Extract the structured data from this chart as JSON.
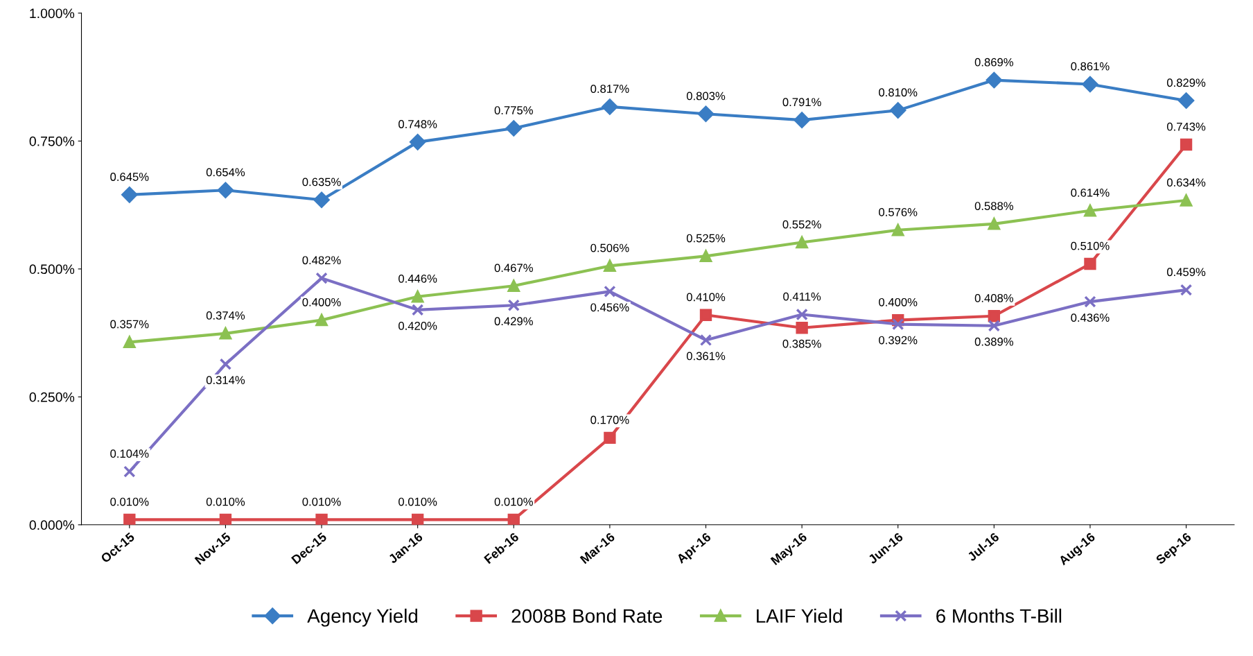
{
  "chart_data": {
    "type": "line",
    "categories": [
      "Oct-15",
      "Nov-15",
      "Dec-15",
      "Jan-16",
      "Feb-16",
      "Mar-16",
      "Apr-16",
      "May-16",
      "Jun-16",
      "Jul-16",
      "Aug-16",
      "Sep-16"
    ],
    "series": [
      {
        "name": "Agency Yield",
        "color": "#3a7dc4",
        "marker": "diamond",
        "values": [
          0.645,
          0.654,
          0.635,
          0.748,
          0.775,
          0.817,
          0.803,
          0.791,
          0.81,
          0.869,
          0.861,
          0.829
        ],
        "value_labels": [
          "0.645%",
          "0.654%",
          "0.635%",
          "0.748%",
          "0.775%",
          "0.817%",
          "0.803%",
          "0.791%",
          "0.810%",
          "0.869%",
          "0.861%",
          "0.829%"
        ]
      },
      {
        "name": "2008B Bond Rate",
        "color": "#d9474b",
        "marker": "square",
        "values": [
          0.01,
          0.01,
          0.01,
          0.01,
          0.01,
          0.17,
          0.41,
          0.385,
          0.4,
          0.408,
          0.51,
          0.743
        ],
        "value_labels": [
          "0.010%",
          "0.010%",
          "0.010%",
          "0.010%",
          "0.010%",
          "0.170%",
          "0.410%",
          "0.385%",
          "0.400%",
          "0.408%",
          "0.510%",
          "0.743%"
        ]
      },
      {
        "name": "LAIF Yield",
        "color": "#8cc152",
        "marker": "triangle",
        "values": [
          0.357,
          0.374,
          0.4,
          0.446,
          0.467,
          0.506,
          0.525,
          0.552,
          0.576,
          0.588,
          0.614,
          0.634
        ],
        "value_labels": [
          "0.357%",
          "0.374%",
          "0.400%",
          "0.446%",
          "0.467%",
          "0.506%",
          "0.525%",
          "0.552%",
          "0.576%",
          "0.588%",
          "0.614%",
          "0.634%"
        ]
      },
      {
        "name": "6 Months T-Bill",
        "color": "#7b6fc4",
        "marker": "cross",
        "values": [
          0.104,
          0.314,
          0.482,
          0.42,
          0.429,
          0.456,
          0.361,
          0.411,
          0.392,
          0.389,
          0.436,
          0.459
        ],
        "value_labels": [
          "0.104%",
          "0.314%",
          "0.482%",
          "0.420%",
          "0.429%",
          "0.456%",
          "0.361%",
          "0.411%",
          "0.392%",
          "0.389%",
          "0.436%",
          "0.459%"
        ]
      }
    ],
    "ylim": [
      0,
      1
    ],
    "yticks": [
      {
        "value": 0,
        "label": "0.000%"
      },
      {
        "value": 0.25,
        "label": "0.250%"
      },
      {
        "value": 0.5,
        "label": "0.500%"
      },
      {
        "value": 0.75,
        "label": "0.750%"
      },
      {
        "value": 1,
        "label": "1.000%"
      }
    ],
    "grid": false,
    "legend": "bottom",
    "line_style": "solid"
  }
}
